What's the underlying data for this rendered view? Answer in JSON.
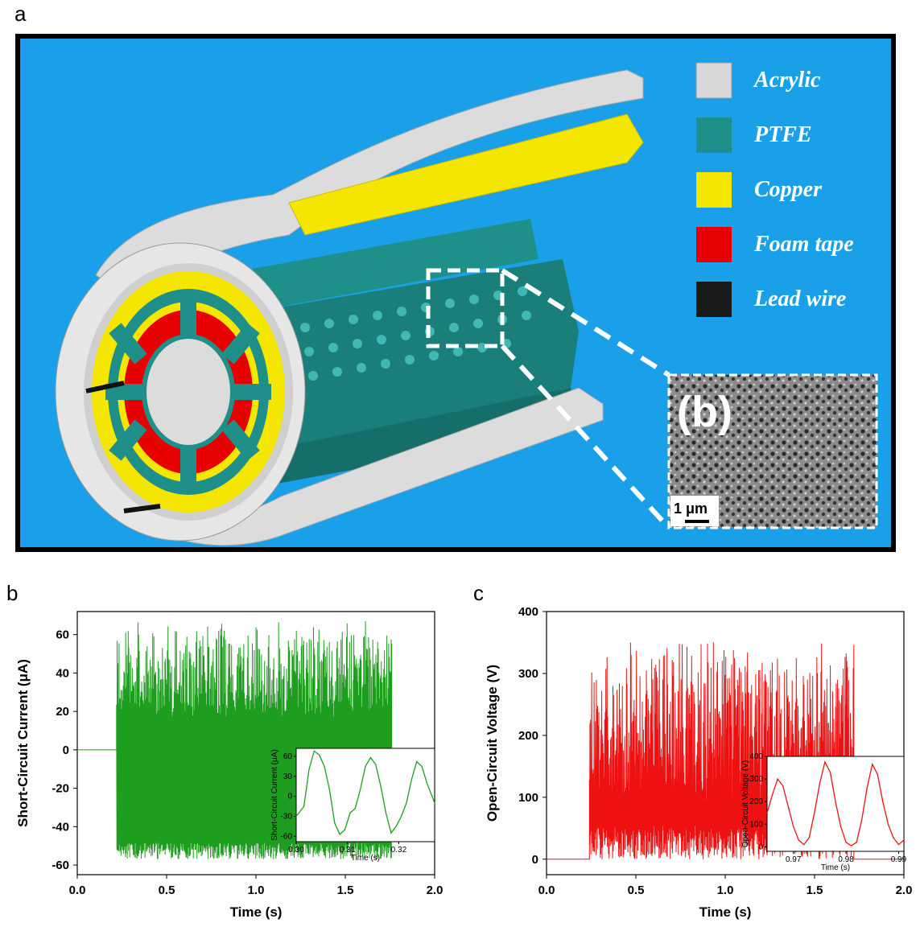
{
  "panel_labels": {
    "a": "a",
    "b": "b",
    "c": "c"
  },
  "diagram": {
    "background_color": "#1aa0e8",
    "legend": [
      {
        "label": "Acrylic",
        "color": "#d8d8d8"
      },
      {
        "label": "PTFE",
        "color": "#1f8f8a"
      },
      {
        "label": "Copper",
        "color": "#f5e600"
      },
      {
        "label": "Foam tape",
        "color": "#e60000"
      },
      {
        "label": "Lead wire",
        "color": "#1a1a1a"
      }
    ],
    "sem_label": "(b)",
    "scale_bar": "1 μm"
  },
  "chart_data": [
    {
      "type": "line",
      "panel": "b",
      "xlabel": "Time (s)",
      "ylabel": "Short-Circuit Current (μA)",
      "xlim": [
        0.0,
        2.0
      ],
      "ylim": [
        -65,
        72
      ],
      "xticks": [
        "0.0",
        "0.5",
        "1.0",
        "1.5",
        "2.0"
      ],
      "yticks": [
        "-60",
        "-40",
        "-20",
        "0",
        "20",
        "40",
        "60"
      ],
      "color": "#1e9e1e",
      "signal": {
        "baseline_until": 0.22,
        "active_from": 0.22,
        "active_until": 1.76,
        "peak_max": 68,
        "peak_min": -57
      },
      "inset": {
        "xlabel": "Time (s)",
        "ylabel": "Short-Circuit Current (μA)",
        "xlim": [
          0.3,
          0.327
        ],
        "ylim": [
          -68,
          72
        ],
        "xticks": [
          "0.30",
          "0.31",
          "0.32"
        ],
        "yticks": [
          "-60",
          "-30",
          "0",
          "30",
          "60"
        ],
        "x": [
          0.3,
          0.3015,
          0.3025,
          0.3035,
          0.3045,
          0.3055,
          0.3065,
          0.3075,
          0.3085,
          0.3095,
          0.3105,
          0.3115,
          0.3125,
          0.3135,
          0.3145,
          0.3155,
          0.3165,
          0.3175,
          0.3185,
          0.3195,
          0.3205,
          0.3215,
          0.3225,
          0.3235,
          0.3245,
          0.3255,
          0.327
        ],
        "y": [
          -30,
          -15,
          40,
          68,
          62,
          45,
          10,
          -40,
          -57,
          -50,
          -25,
          -18,
          10,
          45,
          58,
          48,
          15,
          -25,
          -55,
          -45,
          -30,
          -10,
          25,
          52,
          45,
          20,
          -10
        ]
      }
    },
    {
      "type": "line",
      "panel": "c",
      "xlabel": "Time (s)",
      "ylabel": "Open-Circuit Voltage (V)",
      "xlim": [
        0.0,
        2.0
      ],
      "ylim": [
        -25,
        400
      ],
      "xticks": [
        "0.0",
        "0.5",
        "1.0",
        "1.5",
        "2.0"
      ],
      "yticks": [
        "0",
        "100",
        "200",
        "300",
        "400"
      ],
      "color": "#ee1111",
      "signal": {
        "baseline_until": 0.24,
        "active_from": 0.24,
        "active_until": 1.72,
        "peak_max": 370,
        "peak_min": 0
      },
      "inset": {
        "xlabel": "Time (s)",
        "ylabel": "Open-Circuit Voltage (V)",
        "xlim": [
          0.965,
          0.991
        ],
        "ylim": [
          -20,
          400
        ],
        "xticks": [
          "0.97",
          "0.98",
          "0.99"
        ],
        "yticks": [
          "0",
          "100",
          "200",
          "300",
          "400"
        ],
        "x": [
          0.965,
          0.966,
          0.967,
          0.968,
          0.969,
          0.97,
          0.971,
          0.972,
          0.973,
          0.974,
          0.975,
          0.976,
          0.977,
          0.978,
          0.979,
          0.98,
          0.981,
          0.982,
          0.983,
          0.984,
          0.985,
          0.986,
          0.987,
          0.988,
          0.989,
          0.99,
          0.991
        ],
        "y": [
          150,
          230,
          300,
          270,
          180,
          90,
          30,
          10,
          40,
          150,
          280,
          375,
          330,
          200,
          90,
          20,
          5,
          20,
          120,
          260,
          365,
          320,
          200,
          100,
          40,
          10,
          30
        ]
      }
    }
  ]
}
